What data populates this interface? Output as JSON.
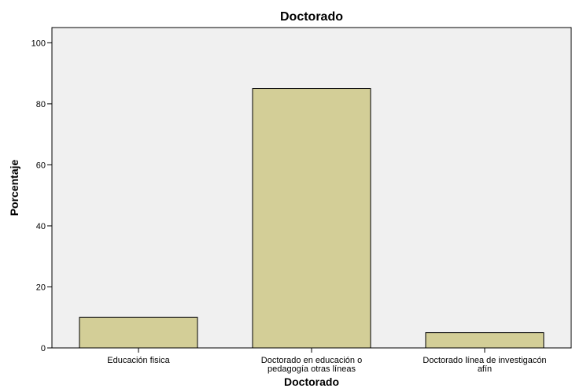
{
  "chart_data": {
    "type": "bar",
    "title": "Doctorado",
    "xlabel": "Doctorado",
    "ylabel": "Porcentaje",
    "ylim": [
      0,
      105
    ],
    "yticks": [
      0,
      20,
      40,
      60,
      80,
      100
    ],
    "categories": [
      [
        "Educación fisica"
      ],
      [
        "Doctorado en educación o",
        "pedagogía otras líneas"
      ],
      [
        "Doctorado línea de investigacón",
        "afín"
      ]
    ],
    "values": [
      10,
      85,
      5
    ],
    "grid": false,
    "legend": "none",
    "colors": {
      "plot_bg": "#F0F0F0",
      "bar_fill": "#D3CE97",
      "bar_stroke": "#000000"
    }
  }
}
